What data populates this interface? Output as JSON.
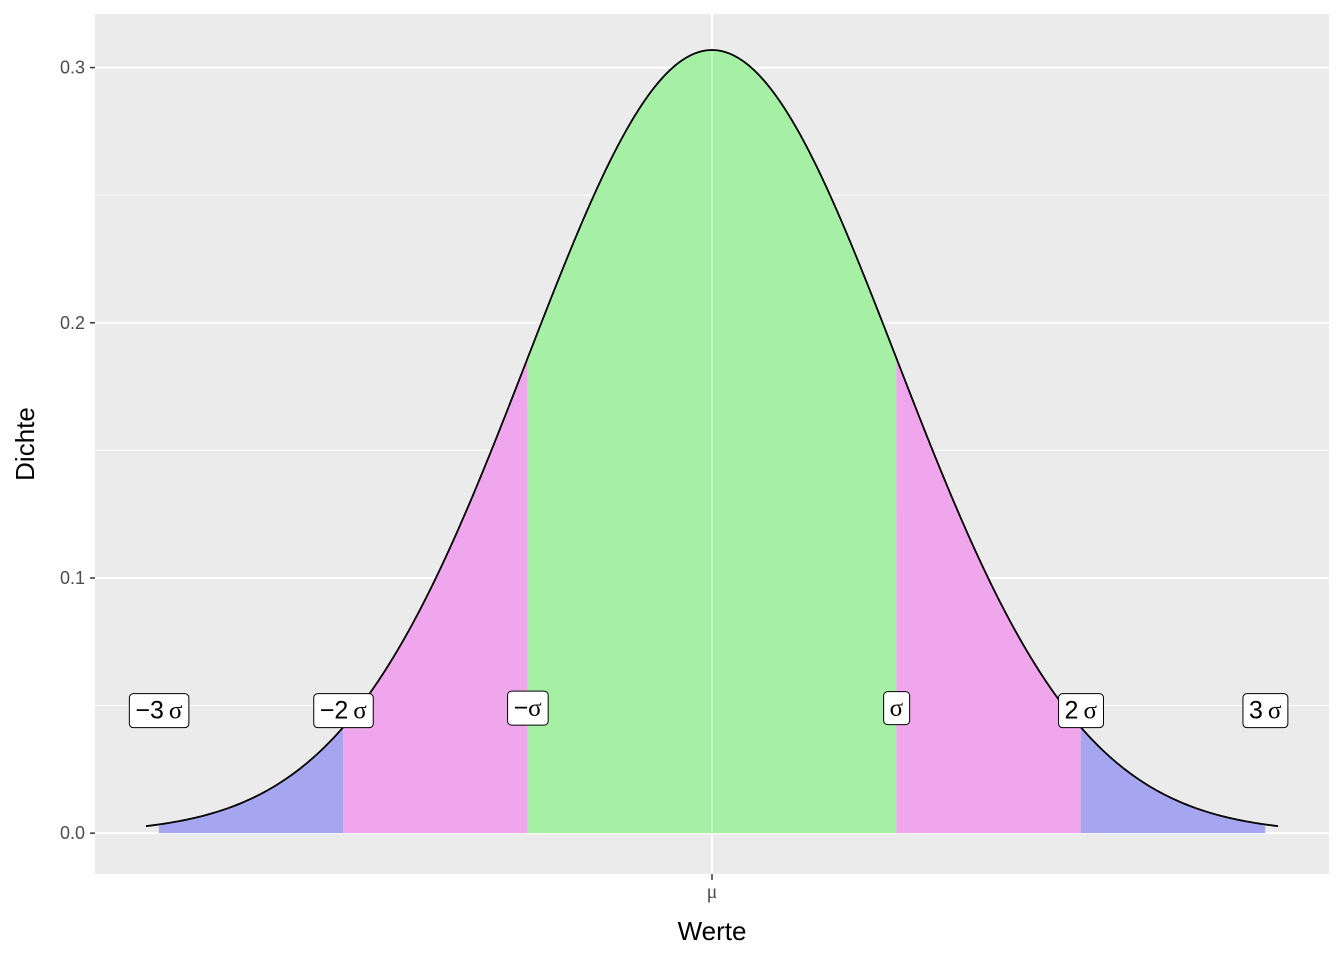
{
  "chart_data": {
    "type": "area",
    "distribution": "normal",
    "mean": 0,
    "sd": 1.3,
    "x_range": [
      -3.07,
      3.07
    ],
    "xlabel": "Werte",
    "ylabel": "Dichte",
    "ylim": [
      -0.016,
      0.321
    ],
    "y_ticks": [
      0.0,
      0.1,
      0.2,
      0.3
    ],
    "y_tick_labels": [
      "0.0",
      "0.1",
      "0.2",
      "0.3"
    ],
    "x_ticks": [
      0
    ],
    "x_tick_labels": [
      "μ"
    ],
    "grid": true,
    "regions": [
      {
        "name": "-3σ bis -2σ",
        "from": -3,
        "to": -2,
        "color": "#a6a6f0"
      },
      {
        "name": "-2σ bis -σ",
        "from": -2,
        "to": -1,
        "color": "#f0a6ec"
      },
      {
        "name": "-σ bis σ",
        "from": -1,
        "to": 1,
        "color": "#a6f0a6"
      },
      {
        "name": "σ bis 2σ",
        "from": 1,
        "to": 2,
        "color": "#f0a6ec"
      },
      {
        "name": "2σ bis 3σ",
        "from": 2,
        "to": 3,
        "color": "#a6a6f0"
      }
    ],
    "annotations": [
      {
        "num": "−3",
        "sym": "σ",
        "x_sd": -3,
        "y": 0.048
      },
      {
        "num": "−2",
        "sym": "σ",
        "x_sd": -2,
        "y": 0.048
      },
      {
        "num": "−",
        "sym": "σ",
        "x_sd": -1,
        "y": 0.049
      },
      {
        "num": "",
        "sym": "σ",
        "x_sd": 1,
        "y": 0.049
      },
      {
        "num": "2",
        "sym": "σ",
        "x_sd": 2,
        "y": 0.048
      },
      {
        "num": "3",
        "sym": "σ",
        "x_sd": 3,
        "y": 0.048
      }
    ],
    "colors": {
      "panel_background": "#ebebeb",
      "grid": "#ffffff",
      "curve": "#000000",
      "label_box_fill": "#ffffff",
      "label_box_border": "#000000"
    }
  }
}
